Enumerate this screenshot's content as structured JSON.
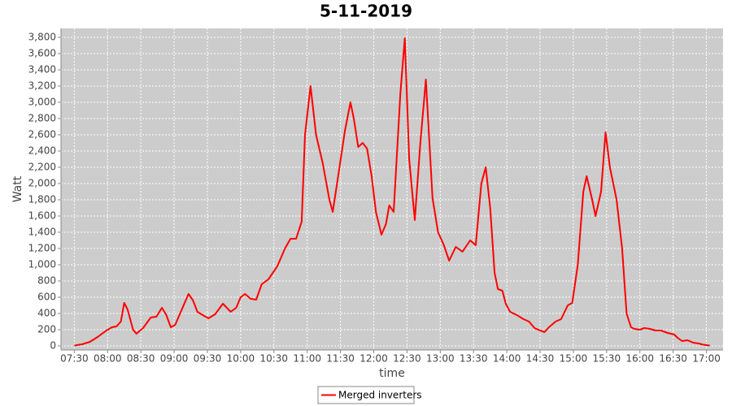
{
  "chart_data": {
    "type": "line",
    "title": "5-11-2019",
    "x_label": "time",
    "y_label": "Watt",
    "x": [
      "07:30",
      "07:37",
      "07:44",
      "07:51",
      "07:59",
      "08:04",
      "08:08",
      "08:12",
      "08:15",
      "08:18",
      "08:23",
      "08:26",
      "08:32",
      "08:39",
      "08:44",
      "08:49",
      "08:53",
      "08:57",
      "09:01",
      "09:06",
      "09:13",
      "09:17",
      "09:21",
      "09:27",
      "09:31",
      "09:37",
      "09:44",
      "09:51",
      "09:56",
      "10:00",
      "10:04",
      "10:09",
      "10:14",
      "10:19",
      "10:25",
      "10:33",
      "10:40",
      "10:45",
      "10:50",
      "10:55",
      "10:58",
      "11:03",
      "11:08",
      "11:14",
      "11:20",
      "11:23",
      "11:28",
      "11:34",
      "11:39",
      "11:42",
      "11:46",
      "11:50",
      "11:54",
      "11:58",
      "12:02",
      "12:07",
      "12:11",
      "12:14",
      "12:18",
      "12:24",
      "12:28",
      "12:32",
      "12:37",
      "12:42",
      "12:47",
      "12:53",
      "12:58",
      "13:03",
      "13:08",
      "13:14",
      "13:20",
      "13:27",
      "13:32",
      "13:37",
      "13:41",
      "13:45",
      "13:49",
      "13:52",
      "13:56",
      "13:59",
      "14:03",
      "14:09",
      "14:15",
      "14:20",
      "14:25",
      "14:30",
      "14:34",
      "14:38",
      "14:44",
      "14:49",
      "14:55",
      "14:59",
      "15:04",
      "15:09",
      "15:12",
      "15:17",
      "15:20",
      "15:25",
      "15:29",
      "15:33",
      "15:39",
      "15:44",
      "15:48",
      "15:52",
      "15:55",
      "16:00",
      "16:04",
      "16:09",
      "16:14",
      "16:19",
      "16:25",
      "16:31",
      "16:34",
      "16:38",
      "16:43",
      "16:48",
      "16:53",
      "16:57",
      "17:03"
    ],
    "series": [
      {
        "name": "Merged inverters",
        "color": "#ff0000",
        "values": [
          5,
          20,
          50,
          110,
          190,
          230,
          240,
          300,
          530,
          450,
          200,
          150,
          220,
          350,
          360,
          470,
          380,
          230,
          260,
          420,
          640,
          560,
          420,
          370,
          340,
          390,
          520,
          420,
          470,
          600,
          640,
          580,
          570,
          760,
          820,
          980,
          1200,
          1320,
          1320,
          1530,
          2600,
          3200,
          2600,
          2250,
          1800,
          1650,
          2100,
          2650,
          3000,
          2800,
          2450,
          2500,
          2430,
          2100,
          1650,
          1370,
          1500,
          1730,
          1650,
          3100,
          3790,
          2300,
          1550,
          2500,
          3280,
          1820,
          1400,
          1250,
          1050,
          1220,
          1160,
          1300,
          1240,
          2000,
          2200,
          1700,
          900,
          700,
          680,
          520,
          420,
          380,
          330,
          300,
          220,
          190,
          170,
          230,
          300,
          330,
          500,
          530,
          1000,
          1900,
          2090,
          1800,
          1600,
          1900,
          2630,
          2200,
          1800,
          1200,
          400,
          230,
          210,
          200,
          220,
          210,
          190,
          190,
          160,
          140,
          100,
          60,
          70,
          40,
          30,
          15,
          5
        ]
      }
    ],
    "xlim": [
      "07:18",
      "17:15"
    ],
    "xticks": [
      "07:30",
      "08:00",
      "08:30",
      "09:00",
      "09:30",
      "10:00",
      "10:30",
      "11:00",
      "11:30",
      "12:00",
      "12:30",
      "13:00",
      "13:30",
      "14:00",
      "14:30",
      "15:00",
      "15:30",
      "16:00",
      "16:30",
      "17:00"
    ],
    "ylim": [
      -50,
      3910
    ],
    "yticks": [
      0,
      200,
      400,
      600,
      800,
      {
        "value": 1000,
        "label": "1,000"
      },
      {
        "value": 1200,
        "label": "1,200"
      },
      {
        "value": 1400,
        "label": "1,400"
      },
      {
        "value": 1600,
        "label": "1,600"
      },
      {
        "value": 1800,
        "label": "1,800"
      },
      {
        "value": 2000,
        "label": "2,000"
      },
      {
        "value": 2200,
        "label": "2,200"
      },
      {
        "value": 2400,
        "label": "2,400"
      },
      {
        "value": 2600,
        "label": "2,600"
      },
      {
        "value": 2800,
        "label": "2,800"
      },
      {
        "value": 3000,
        "label": "3,000"
      },
      {
        "value": 3200,
        "label": "3,200"
      },
      {
        "value": 3400,
        "label": "3,400"
      },
      {
        "value": 3600,
        "label": "3,600"
      },
      {
        "value": 3800,
        "label": "3,800"
      }
    ],
    "grid": true,
    "legend": "bottom"
  }
}
